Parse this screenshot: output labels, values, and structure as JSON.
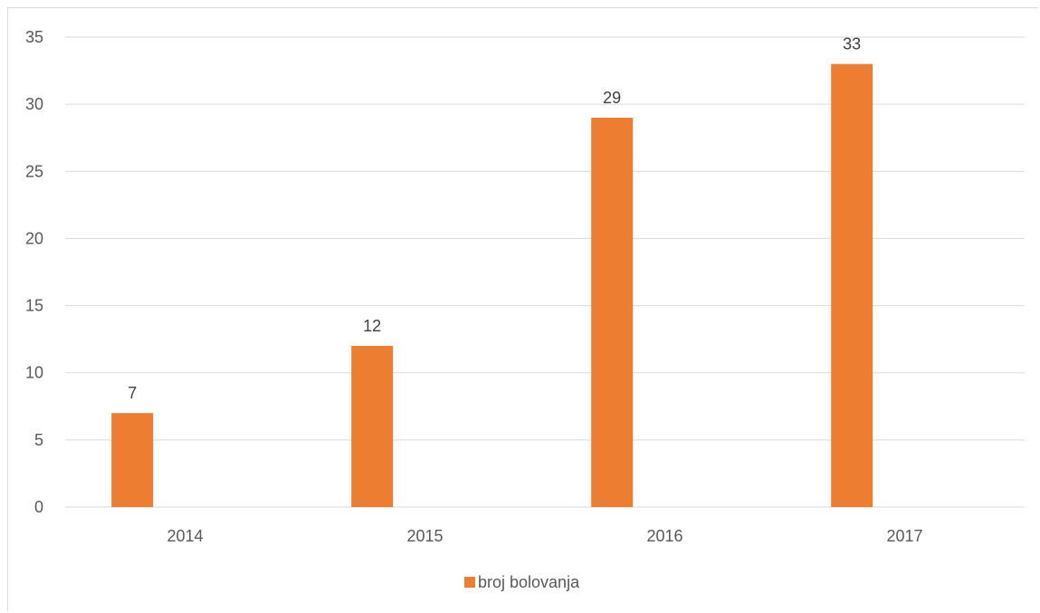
{
  "chart_data": {
    "type": "bar",
    "title": "",
    "xlabel": "",
    "ylabel": "",
    "categories": [
      "2014",
      "2015",
      "2016",
      "2017"
    ],
    "series": [
      {
        "name": "broj bolovanja",
        "values": [
          7,
          12,
          29,
          33
        ],
        "color": "#ED7D31"
      }
    ],
    "ylim": [
      0,
      35
    ],
    "yticks": [
      0,
      5,
      10,
      15,
      20,
      25,
      30,
      35
    ],
    "grid": true,
    "legend": "bottom",
    "data_labels": true
  }
}
